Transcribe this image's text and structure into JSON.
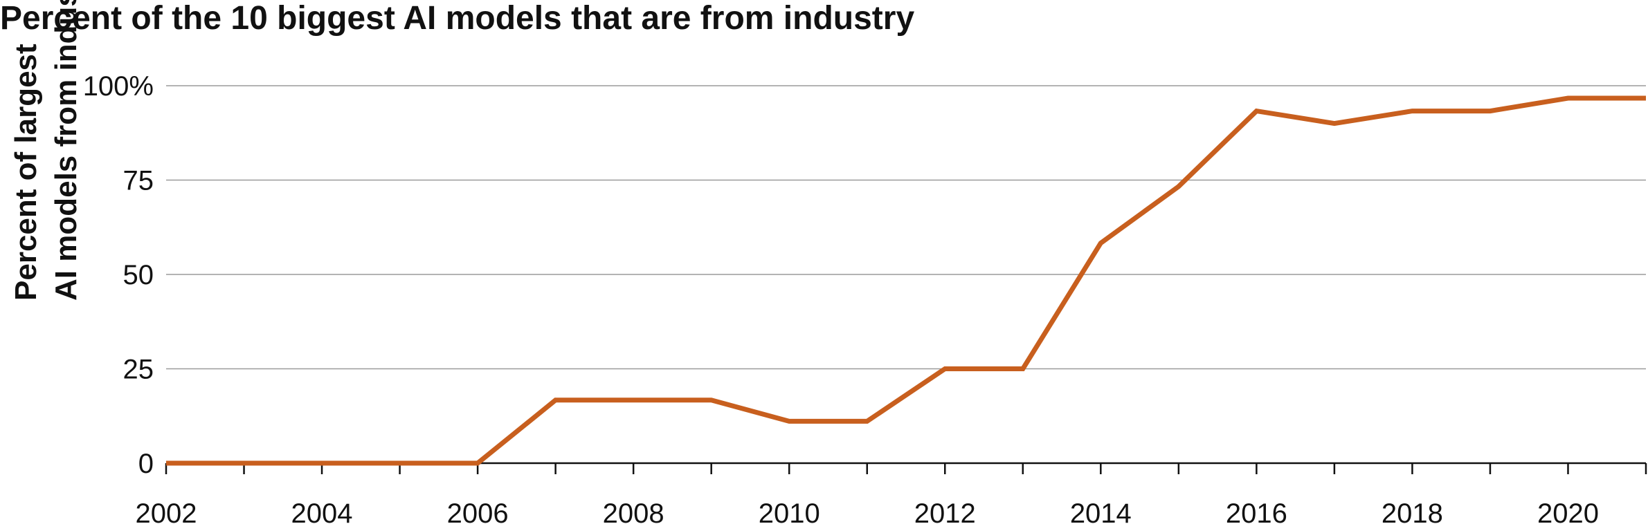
{
  "chart_data": {
    "type": "line",
    "title": "Percent of the 10 biggest AI models that are from industry",
    "ylabel_lines": [
      "Percent of largest",
      "AI models from industry"
    ],
    "xlabel": "",
    "x": [
      2002,
      2003,
      2004,
      2005,
      2006,
      2007,
      2008,
      2009,
      2010,
      2011,
      2012,
      2013,
      2014,
      2015,
      2016,
      2017,
      2018,
      2019,
      2020,
      2021
    ],
    "series": [
      {
        "values": [
          0,
          0,
          0,
          0,
          0,
          16.7,
          16.7,
          16.7,
          11.1,
          11.1,
          25,
          25,
          58.3,
          73.3,
          93.3,
          90,
          93.3,
          93.3,
          96.7,
          96.7
        ],
        "color": "#c85f1e"
      }
    ],
    "xlim": [
      2002,
      2021
    ],
    "ylim": [
      0,
      100
    ],
    "x_ticks": [
      2002,
      2003,
      2004,
      2005,
      2006,
      2007,
      2008,
      2009,
      2010,
      2011,
      2012,
      2013,
      2014,
      2015,
      2016,
      2017,
      2018,
      2019,
      2020,
      2021
    ],
    "x_tick_labels": [
      {
        "value": 2002,
        "label": "2002"
      },
      {
        "value": 2004,
        "label": "2004"
      },
      {
        "value": 2006,
        "label": "2006"
      },
      {
        "value": 2008,
        "label": "2008"
      },
      {
        "value": 2010,
        "label": "2010"
      },
      {
        "value": 2012,
        "label": "2012"
      },
      {
        "value": 2014,
        "label": "2014"
      },
      {
        "value": 2016,
        "label": "2016"
      },
      {
        "value": 2018,
        "label": "2018"
      },
      {
        "value": 2020,
        "label": "2020"
      }
    ],
    "y_ticks": [
      {
        "value": 0,
        "label": "0"
      },
      {
        "value": 25,
        "label": "25"
      },
      {
        "value": 50,
        "label": "50"
      },
      {
        "value": 75,
        "label": "75"
      },
      {
        "value": 100,
        "label": "100%"
      }
    ],
    "grid": true,
    "legend": "none"
  }
}
